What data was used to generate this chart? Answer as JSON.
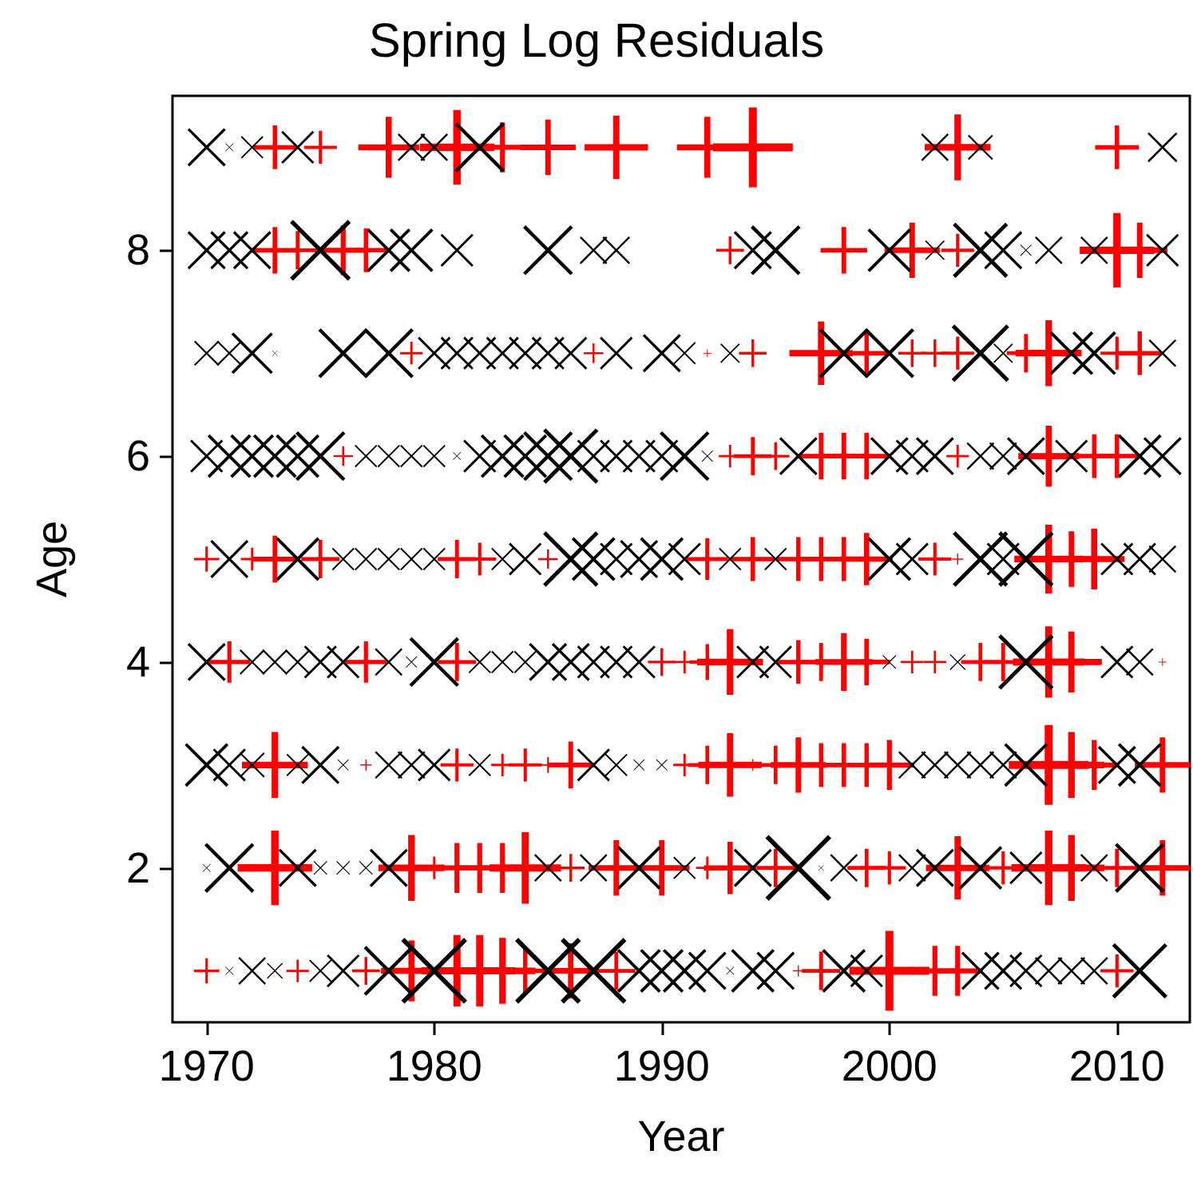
{
  "chart_data": {
    "type": "bubble",
    "title": "Spring Log Residuals",
    "xlabel": "Year",
    "ylabel": "Age",
    "xlim": [
      1968.5,
      2013.2
    ],
    "xticks": [
      1970,
      1980,
      1990,
      2000,
      2010
    ],
    "ylim": [
      0.5,
      9.5
    ],
    "yticks": [
      2,
      4,
      6,
      8
    ],
    "series": [
      {
        "color": "#ff0000",
        "marker": "cross",
        "x": [
          1973,
          1975,
          1978,
          1981,
          1983,
          1985,
          1988,
          1992,
          1994,
          2003,
          2010
        ],
        "values": [
          9,
          9,
          9,
          9,
          9,
          9,
          9,
          9,
          9,
          9,
          9
        ],
        "sizes": [
          0.3,
          0.17,
          0.58,
          0.87,
          0.39,
          0.48,
          0.63,
          0.58,
          1.0,
          0.68,
          0.3
        ]
      },
      {
        "color": "#000000",
        "marker": "x",
        "x": [
          1970,
          1971,
          1972,
          1974,
          1979,
          1980,
          1982,
          2002,
          2004,
          2012
        ],
        "values": [
          9,
          9,
          9,
          9,
          9,
          9,
          9,
          9,
          9,
          9
        ],
        "sizes": [
          0.23,
          0.01,
          0.08,
          0.17,
          0.12,
          0.12,
          0.39,
          0.12,
          0.1,
          0.14
        ]
      },
      {
        "color": "#ff0000",
        "marker": "cross",
        "x": [
          1973,
          1974,
          1976,
          1977,
          1993,
          1998,
          2001,
          2003,
          2010,
          2011
        ],
        "values": [
          8,
          8,
          8,
          8,
          8,
          8,
          8,
          8,
          8,
          8
        ],
        "sizes": [
          0.34,
          0.23,
          0.39,
          0.3,
          0.12,
          0.34,
          0.48,
          0.17,
          0.87,
          0.48
        ]
      },
      {
        "color": "#000000",
        "marker": "x",
        "x": [
          1970,
          1971,
          1972,
          1975,
          1978,
          1979,
          1981,
          1985,
          1987,
          1988,
          1994,
          1995,
          2000,
          2002,
          2004,
          2005,
          2006,
          2007,
          2009,
          2012
        ],
        "values": [
          8,
          8,
          8,
          8,
          8,
          8,
          8,
          8,
          8,
          8,
          8,
          8,
          8,
          8,
          8,
          8,
          8,
          8,
          8,
          8
        ],
        "sizes": [
          0.23,
          0.23,
          0.23,
          0.58,
          0.3,
          0.3,
          0.17,
          0.39,
          0.12,
          0.12,
          0.23,
          0.39,
          0.3,
          0.06,
          0.48,
          0.23,
          0.02,
          0.12,
          0.12,
          0.17
        ]
      },
      {
        "color": "#ff0000",
        "marker": "cross",
        "x": [
          1979,
          1987,
          1992,
          1994,
          1997,
          1999,
          2001,
          2002,
          2003,
          2006,
          2007,
          2010,
          2011
        ],
        "values": [
          7,
          7,
          7,
          7,
          7,
          7,
          7,
          7,
          7,
          7,
          7,
          7,
          7
        ],
        "sizes": [
          0.08,
          0.06,
          0.01,
          0.12,
          0.63,
          0.3,
          0.12,
          0.12,
          0.17,
          0.23,
          0.68,
          0.17,
          0.3
        ]
      },
      {
        "color": "#000000",
        "marker": "x",
        "x": [
          1970,
          1971,
          1972,
          1973,
          1976,
          1978,
          1980,
          1981,
          1982,
          1983,
          1984,
          1985,
          1986,
          1988,
          1990,
          1991,
          1993,
          1998,
          2000,
          2004,
          2005,
          2008,
          2009,
          2012
        ],
        "values": [
          7,
          7,
          7,
          7,
          7,
          7,
          7,
          7,
          7,
          7,
          7,
          7,
          7,
          7,
          7,
          7,
          7,
          7,
          7,
          7,
          7,
          7,
          7,
          7
        ],
        "sizes": [
          0.1,
          0.1,
          0.27,
          0.005,
          0.39,
          0.39,
          0.17,
          0.17,
          0.17,
          0.17,
          0.17,
          0.17,
          0.17,
          0.17,
          0.23,
          0.08,
          0.06,
          0.39,
          0.39,
          0.52,
          0.06,
          0.3,
          0.3,
          0.12
        ]
      },
      {
        "color": "#ff0000",
        "marker": "cross",
        "x": [
          1976,
          1993,
          1994,
          1995,
          1997,
          1998,
          1999,
          2003,
          2007,
          2009,
          2010
        ],
        "values": [
          6,
          6,
          6,
          6,
          6,
          6,
          6,
          6,
          6,
          6,
          6
        ],
        "sizes": [
          0.06,
          0.08,
          0.23,
          0.12,
          0.34,
          0.34,
          0.34,
          0.08,
          0.58,
          0.3,
          0.3
        ]
      },
      {
        "color": "#000000",
        "marker": "x",
        "x": [
          1970,
          1971,
          1972,
          1973,
          1974,
          1975,
          1977,
          1978,
          1979,
          1980,
          1981,
          1982,
          1983,
          1984,
          1985,
          1986,
          1987,
          1988,
          1989,
          1990,
          1991,
          1992,
          1996,
          2000,
          2001,
          2002,
          2004,
          2005,
          2006,
          2008,
          2011,
          2012
        ],
        "values": [
          6,
          6,
          6,
          6,
          6,
          6,
          6,
          6,
          6,
          6,
          6,
          6,
          6,
          6,
          6,
          6,
          6,
          6,
          6,
          6,
          6,
          6,
          6,
          6,
          6,
          6,
          6,
          6,
          6,
          6,
          6,
          6
        ],
        "sizes": [
          0.17,
          0.3,
          0.3,
          0.3,
          0.3,
          0.39,
          0.08,
          0.08,
          0.08,
          0.08,
          0.01,
          0.17,
          0.3,
          0.3,
          0.39,
          0.48,
          0.17,
          0.17,
          0.17,
          0.17,
          0.39,
          0.02,
          0.23,
          0.23,
          0.17,
          0.23,
          0.12,
          0.12,
          0.23,
          0.17,
          0.3,
          0.23
        ]
      },
      {
        "color": "#ff0000",
        "marker": "cross",
        "x": [
          1970,
          1972,
          1973,
          1975,
          1981,
          1982,
          1985,
          1992,
          1994,
          1996,
          1997,
          1998,
          1999,
          2002,
          2003,
          2007,
          2008,
          2009
        ],
        "values": [
          5,
          5,
          5,
          5,
          5,
          5,
          5,
          5,
          5,
          5,
          5,
          5,
          5,
          5,
          5,
          5,
          5,
          5
        ],
        "sizes": [
          0.1,
          0.08,
          0.34,
          0.23,
          0.23,
          0.17,
          0.06,
          0.27,
          0.3,
          0.3,
          0.3,
          0.3,
          0.43,
          0.17,
          0.02,
          0.74,
          0.48,
          0.58
        ]
      },
      {
        "color": "#000000",
        "marker": "x",
        "x": [
          1971,
          1974,
          1976,
          1977,
          1978,
          1979,
          1980,
          1983,
          1984,
          1986,
          1987,
          1988,
          1989,
          1990,
          1991,
          1993,
          1995,
          2000,
          2001,
          2004,
          2005,
          2006,
          2010,
          2011,
          2012
        ],
        "values": [
          5,
          5,
          5,
          5,
          5,
          5,
          5,
          5,
          5,
          5,
          5,
          5,
          5,
          5,
          5,
          5,
          5,
          5,
          5,
          5,
          5,
          5,
          5,
          5,
          5
        ],
        "sizes": [
          0.23,
          0.3,
          0.08,
          0.08,
          0.08,
          0.08,
          0.08,
          0.08,
          0.17,
          0.48,
          0.3,
          0.17,
          0.23,
          0.3,
          0.17,
          0.08,
          0.08,
          0.3,
          0.17,
          0.48,
          0.17,
          0.48,
          0.17,
          0.17,
          0.12
        ]
      },
      {
        "color": "#ff0000",
        "marker": "cross",
        "x": [
          1971,
          1977,
          1981,
          1990,
          1991,
          1992,
          1993,
          1996,
          1997,
          1998,
          1999,
          2001,
          2002,
          2004,
          2005,
          2007,
          2008,
          2012
        ],
        "values": [
          4,
          4,
          4,
          4,
          4,
          4,
          4,
          4,
          4,
          4,
          4,
          4,
          4,
          4,
          4,
          4,
          4,
          4
        ],
        "sizes": [
          0.27,
          0.27,
          0.23,
          0.12,
          0.08,
          0.2,
          0.68,
          0.3,
          0.23,
          0.52,
          0.34,
          0.08,
          0.08,
          0.23,
          0.23,
          0.8,
          0.58,
          0.01
        ]
      },
      {
        "color": "#000000",
        "marker": "x",
        "x": [
          1970,
          1972,
          1973,
          1974,
          1975,
          1976,
          1978,
          1979,
          1980,
          1982,
          1983,
          1984,
          1985,
          1986,
          1987,
          1988,
          1989,
          1994,
          1995,
          2000,
          2003,
          2006,
          2010,
          2011
        ],
        "values": [
          4,
          4,
          4,
          4,
          4,
          4,
          4,
          4,
          4,
          4,
          4,
          4,
          4,
          4,
          4,
          4,
          4,
          4,
          4,
          4,
          4,
          4,
          4,
          4
        ],
        "sizes": [
          0.23,
          0.1,
          0.1,
          0.1,
          0.17,
          0.17,
          0.12,
          0.02,
          0.39,
          0.08,
          0.08,
          0.08,
          0.23,
          0.23,
          0.17,
          0.17,
          0.17,
          0.17,
          0.17,
          0.03,
          0.04,
          0.48,
          0.17,
          0.12
        ]
      },
      {
        "color": "#ff0000",
        "marker": "cross",
        "x": [
          1973,
          1977,
          1981,
          1983,
          1984,
          1985,
          1986,
          1991,
          1992,
          1993,
          1994,
          1995,
          1996,
          1997,
          1998,
          1999,
          2000,
          2007,
          2008,
          2009,
          2012
        ],
        "values": [
          3,
          3,
          3,
          3,
          3,
          3,
          3,
          3,
          3,
          3,
          3,
          3,
          3,
          3,
          3,
          3,
          3,
          3,
          3,
          3,
          3
        ],
        "sizes": [
          0.68,
          0.02,
          0.17,
          0.08,
          0.17,
          0.04,
          0.34,
          0.08,
          0.23,
          0.63,
          0.02,
          0.23,
          0.48,
          0.3,
          0.3,
          0.3,
          0.39,
          1.0,
          0.68,
          0.39,
          0.48
        ]
      },
      {
        "color": "#000000",
        "marker": "x",
        "x": [
          1970,
          1971,
          1972,
          1974,
          1975,
          1976,
          1978,
          1979,
          1980,
          1982,
          1987,
          1988,
          1989,
          1990,
          2001,
          2002,
          2003,
          2004,
          2005,
          2006,
          2010,
          2011
        ],
        "values": [
          3,
          3,
          3,
          3,
          3,
          3,
          3,
          3,
          3,
          3,
          3,
          3,
          3,
          3,
          3,
          3,
          3,
          3,
          3,
          3,
          3,
          3
        ],
        "sizes": [
          0.3,
          0.17,
          0.1,
          0.08,
          0.23,
          0.02,
          0.12,
          0.12,
          0.17,
          0.08,
          0.17,
          0.08,
          0.02,
          0.02,
          0.12,
          0.12,
          0.12,
          0.12,
          0.12,
          0.3,
          0.23,
          0.3
        ]
      },
      {
        "color": "#ff0000",
        "marker": "cross",
        "x": [
          1972,
          1973,
          1979,
          1980,
          1981,
          1982,
          1983,
          1984,
          1986,
          1988,
          1990,
          1992,
          1993,
          1995,
          1999,
          2000,
          2003,
          2005,
          2007,
          2008,
          2010,
          2012
        ],
        "values": [
          2,
          2,
          2,
          2,
          2,
          2,
          2,
          2,
          2,
          2,
          2,
          2,
          2,
          2,
          2,
          2,
          2,
          2,
          2,
          2,
          2,
          2
        ],
        "sizes": [
          0.01,
          0.87,
          0.68,
          0.08,
          0.39,
          0.39,
          0.39,
          0.8,
          0.12,
          0.48,
          0.48,
          0.08,
          0.43,
          0.23,
          0.23,
          0.17,
          0.63,
          0.17,
          0.87,
          0.68,
          0.23,
          0.48
        ]
      },
      {
        "color": "#000000",
        "marker": "x",
        "x": [
          1970,
          1971,
          1974,
          1975,
          1976,
          1977,
          1978,
          1985,
          1987,
          1989,
          1991,
          1994,
          1996,
          1997,
          1998,
          2001,
          2002,
          2004,
          2006,
          2009,
          2011
        ],
        "values": [
          2,
          2,
          2,
          2,
          2,
          2,
          2,
          2,
          2,
          2,
          2,
          2,
          2,
          2,
          2,
          2,
          2,
          2,
          2,
          2,
          2
        ],
        "sizes": [
          0.01,
          0.39,
          0.23,
          0.03,
          0.03,
          0.03,
          0.23,
          0.12,
          0.12,
          0.3,
          0.08,
          0.23,
          0.68,
          0.005,
          0.12,
          0.12,
          0.23,
          0.3,
          0.17,
          0.12,
          0.39
        ]
      },
      {
        "color": "#ff0000",
        "marker": "cross",
        "x": [
          1970,
          1974,
          1977,
          1979,
          1981,
          1982,
          1983,
          1984,
          1986,
          1988,
          1996,
          1997,
          2000,
          2001,
          2002,
          2003,
          2010
        ],
        "values": [
          1,
          1,
          1,
          1,
          1,
          1,
          1,
          1,
          1,
          1,
          1,
          1,
          1,
          1,
          1,
          1,
          1
        ],
        "sizes": [
          0.1,
          0.08,
          0.12,
          0.58,
          0.8,
          0.8,
          0.68,
          0.3,
          0.48,
          0.23,
          0.02,
          0.23,
          1.0,
          0.01,
          0.39,
          0.39,
          0.17
        ]
      },
      {
        "color": "#000000",
        "marker": "x",
        "x": [
          1971,
          1972,
          1973,
          1975,
          1976,
          1978,
          1980,
          1985,
          1987,
          1989,
          1990,
          1991,
          1992,
          1993,
          1994,
          1995,
          1998,
          1999,
          2004,
          2005,
          2006,
          2007,
          2008,
          2009,
          2011
        ],
        "values": [
          1,
          1,
          1,
          1,
          1,
          1,
          1,
          1,
          1,
          1,
          1,
          1,
          1,
          1,
          1,
          1,
          1,
          1,
          1,
          1,
          1,
          1,
          1,
          1,
          1
        ],
        "sizes": [
          0.01,
          0.12,
          0.04,
          0.08,
          0.17,
          0.39,
          0.68,
          0.68,
          0.68,
          0.3,
          0.3,
          0.3,
          0.23,
          0.01,
          0.3,
          0.23,
          0.3,
          0.17,
          0.23,
          0.23,
          0.17,
          0.12,
          0.12,
          0.12,
          0.48
        ]
      }
    ]
  }
}
